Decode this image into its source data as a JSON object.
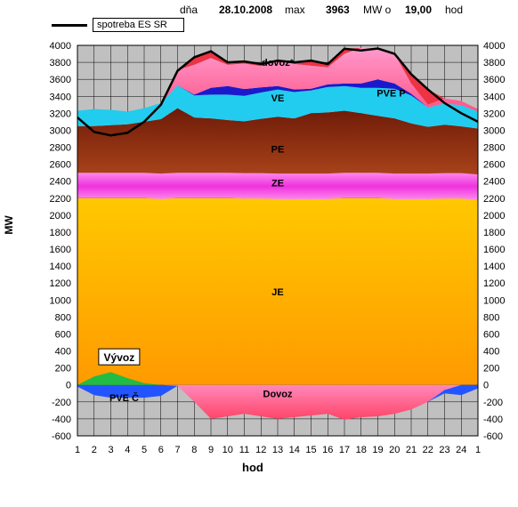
{
  "header": {
    "date_label": "dňa",
    "date": "28.10.2008",
    "max_label": "max",
    "max_value": "3963",
    "unit_at": "MW o",
    "hour": "19,00",
    "hour_label": "hod"
  },
  "legend": {
    "line_label": "spotreba ES SR",
    "line_color": "#000000"
  },
  "chart_data": {
    "type": "area",
    "xlabel": "hod",
    "ylabel": "MW",
    "ylim": [
      -600,
      4000
    ],
    "ytick_step": 200,
    "x_ticks": [
      "1",
      "2",
      "3",
      "4",
      "5",
      "6",
      "7",
      "8",
      "9",
      "10",
      "11",
      "12",
      "13",
      "14",
      "15",
      "16",
      "17",
      "18",
      "19",
      "20",
      "21",
      "22",
      "23",
      "24",
      "1"
    ],
    "grid": true,
    "region_labels": [
      {
        "text": "dovoz*",
        "x": 13,
        "y": 3800
      },
      {
        "text": "VE",
        "x": 13,
        "y": 3380
      },
      {
        "text": "PVE P",
        "x": 19.8,
        "y": 3440
      },
      {
        "text": "PE",
        "x": 13,
        "y": 2780
      },
      {
        "text": "ZE",
        "x": 13,
        "y": 2380
      },
      {
        "text": "JE",
        "x": 13,
        "y": 1100
      },
      {
        "text": "Dovoz",
        "x": 13,
        "y": -100
      },
      {
        "text": "PVE Č",
        "x": 3.8,
        "y": -150
      }
    ],
    "annotation": {
      "text": "Vývoz",
      "x": 3.5,
      "y": 310
    },
    "colors": {
      "JE": "#ffb400",
      "ZE": "#ee44dd",
      "PE": "#8b2a10",
      "VE": "#22ccee",
      "PVE_P": "#1a1acc",
      "dovoz": "#ff77aa",
      "deficit": "#ee3344",
      "Dovoz_neg": "#ff7799",
      "PVE_C": "#2255ff",
      "vyvoz": "#22bb44",
      "line": "#000000"
    },
    "series": [
      {
        "name": "JE",
        "values": [
          2200,
          2200,
          2200,
          2200,
          2200,
          2190,
          2200,
          2200,
          2200,
          2200,
          2195,
          2195,
          2190,
          2190,
          2190,
          2190,
          2200,
          2200,
          2200,
          2190,
          2190,
          2190,
          2195,
          2195,
          2180
        ]
      },
      {
        "name": "ZE",
        "values": [
          300,
          300,
          300,
          300,
          300,
          300,
          300,
          300,
          300,
          300,
          300,
          300,
          300,
          300,
          300,
          300,
          300,
          300,
          300,
          300,
          300,
          300,
          300,
          300,
          300
        ]
      },
      {
        "name": "PE",
        "values": [
          550,
          550,
          560,
          570,
          600,
          640,
          760,
          650,
          640,
          620,
          610,
          640,
          670,
          650,
          710,
          720,
          730,
          700,
          670,
          650,
          590,
          550,
          570,
          550,
          540
        ]
      },
      {
        "name": "VE",
        "values": [
          180,
          200,
          180,
          150,
          160,
          190,
          270,
          260,
          280,
          300,
          300,
          310,
          320,
          310,
          270,
          300,
          290,
          300,
          330,
          350,
          330,
          230,
          250,
          250,
          200
        ]
      },
      {
        "name": "PVE P",
        "values": [
          0,
          0,
          0,
          0,
          0,
          0,
          0,
          10,
          80,
          100,
          80,
          60,
          40,
          30,
          20,
          30,
          30,
          50,
          100,
          60,
          20,
          0,
          0,
          0,
          0
        ]
      },
      {
        "name": "dovoz*",
        "values": [
          0,
          0,
          0,
          0,
          0,
          0,
          180,
          350,
          350,
          250,
          300,
          250,
          300,
          300,
          270,
          200,
          350,
          420,
          360,
          350,
          120,
          30,
          60,
          50,
          30
        ]
      },
      {
        "name": "Dovoz",
        "values": [
          0,
          0,
          0,
          0,
          0,
          0,
          -10,
          -200,
          -400,
          -370,
          -340,
          -370,
          -400,
          -380,
          -360,
          -340,
          -410,
          -380,
          -370,
          -340,
          -290,
          -200,
          -60,
          0,
          0
        ]
      },
      {
        "name": "PVE Č",
        "values": [
          -20,
          -120,
          -150,
          -150,
          -150,
          -130,
          0,
          0,
          0,
          0,
          0,
          0,
          0,
          0,
          0,
          0,
          0,
          0,
          0,
          0,
          0,
          0,
          -40,
          -120,
          -40
        ]
      },
      {
        "name": "Vývoz",
        "values": [
          0,
          100,
          150,
          80,
          20,
          0,
          0,
          0,
          0,
          0,
          0,
          0,
          0,
          0,
          0,
          0,
          0,
          0,
          0,
          0,
          0,
          0,
          0,
          0,
          0
        ]
      },
      {
        "name": "spotreba ES SR",
        "values": [
          3150,
          2980,
          2940,
          2970,
          3100,
          3300,
          3700,
          3860,
          3930,
          3800,
          3810,
          3780,
          3820,
          3800,
          3820,
          3780,
          3960,
          3940,
          3963,
          3900,
          3660,
          3480,
          3320,
          3200,
          3100
        ]
      }
    ]
  }
}
